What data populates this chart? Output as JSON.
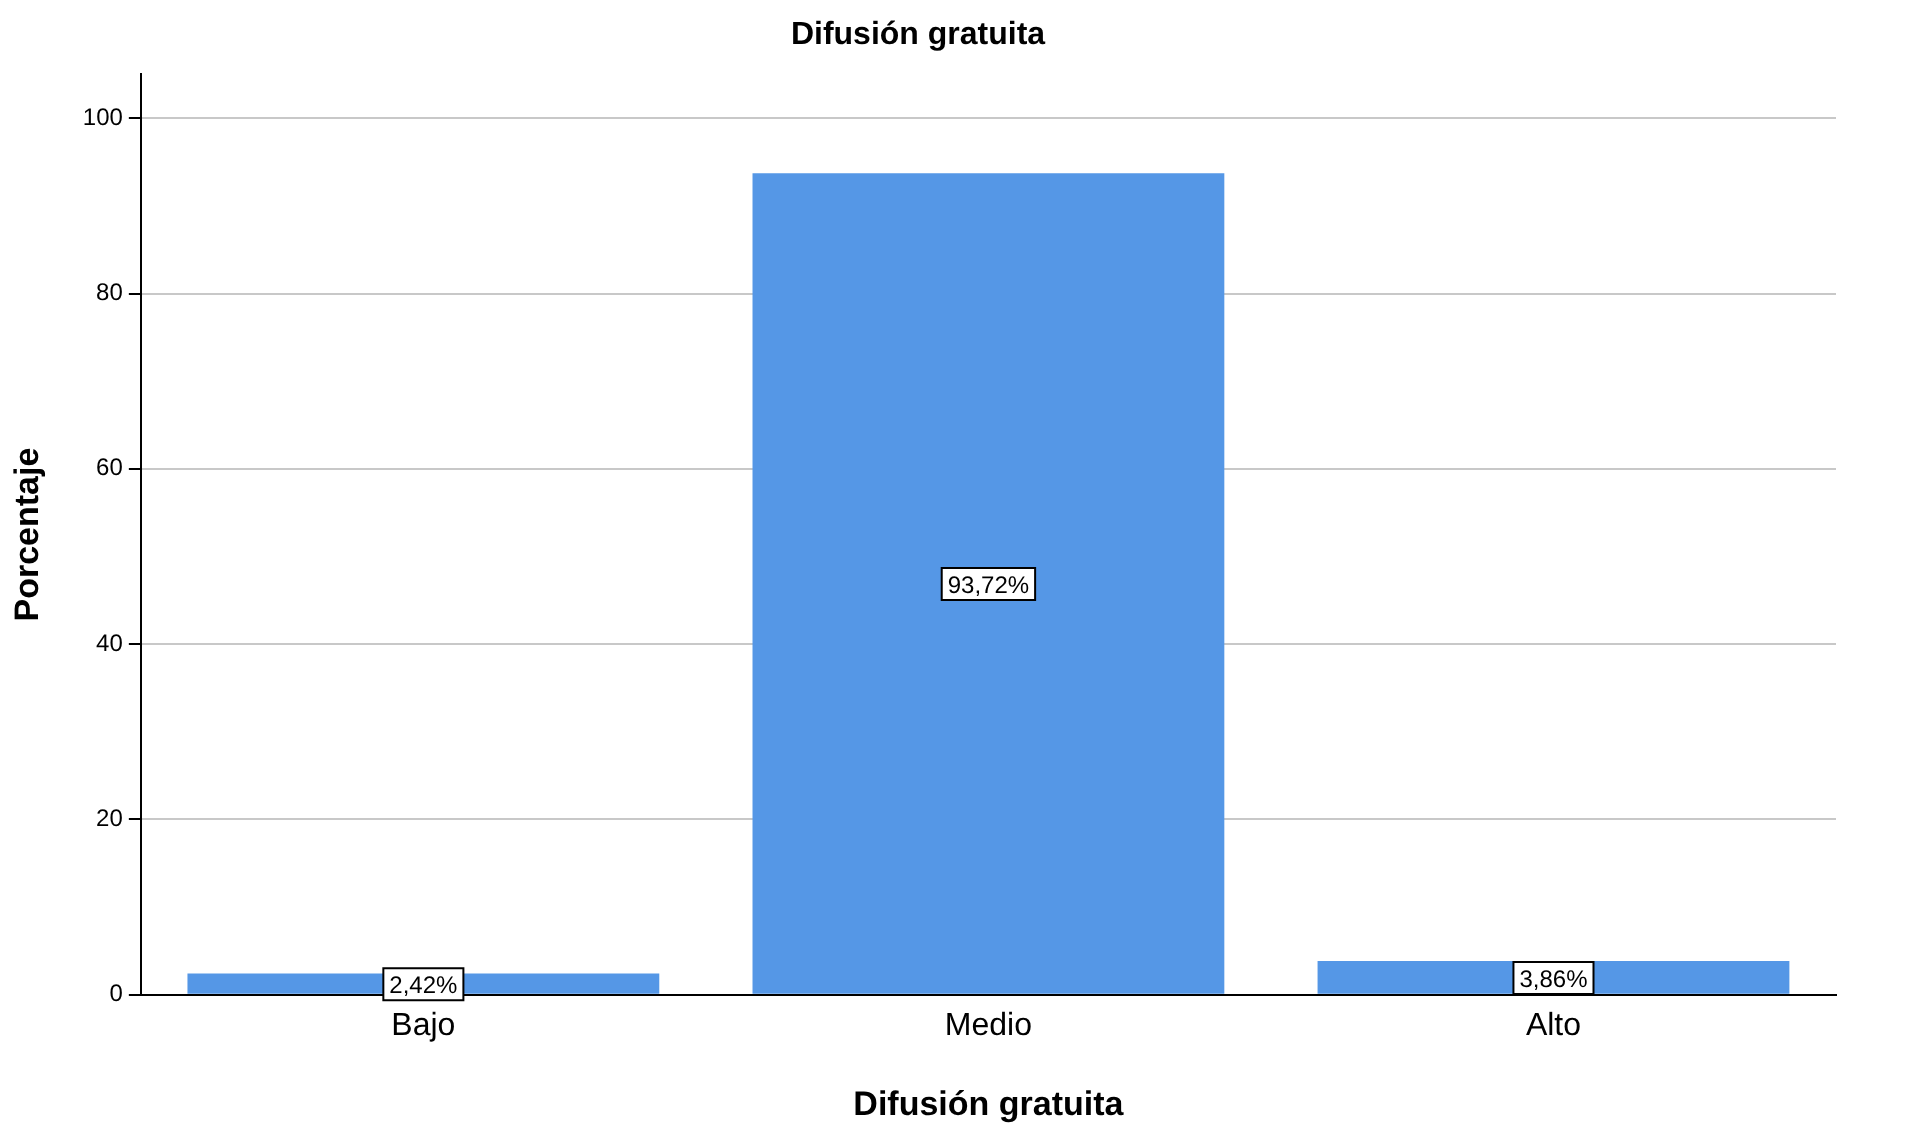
{
  "chart_data": {
    "type": "bar",
    "title": "Difusión gratuita",
    "xlabel": "Difusión gratuita",
    "ylabel": "Porcentaje",
    "categories": [
      "Bajo",
      "Medio",
      "Alto"
    ],
    "values": [
      2.42,
      93.72,
      3.86
    ],
    "value_labels": [
      "2,42%",
      "93,72%",
      "3,86%"
    ],
    "color": "#5597e6",
    "ylim": [
      0,
      105
    ],
    "yticks": [
      0,
      20,
      40,
      60,
      80,
      100
    ],
    "grid": "y",
    "legend": false
  }
}
